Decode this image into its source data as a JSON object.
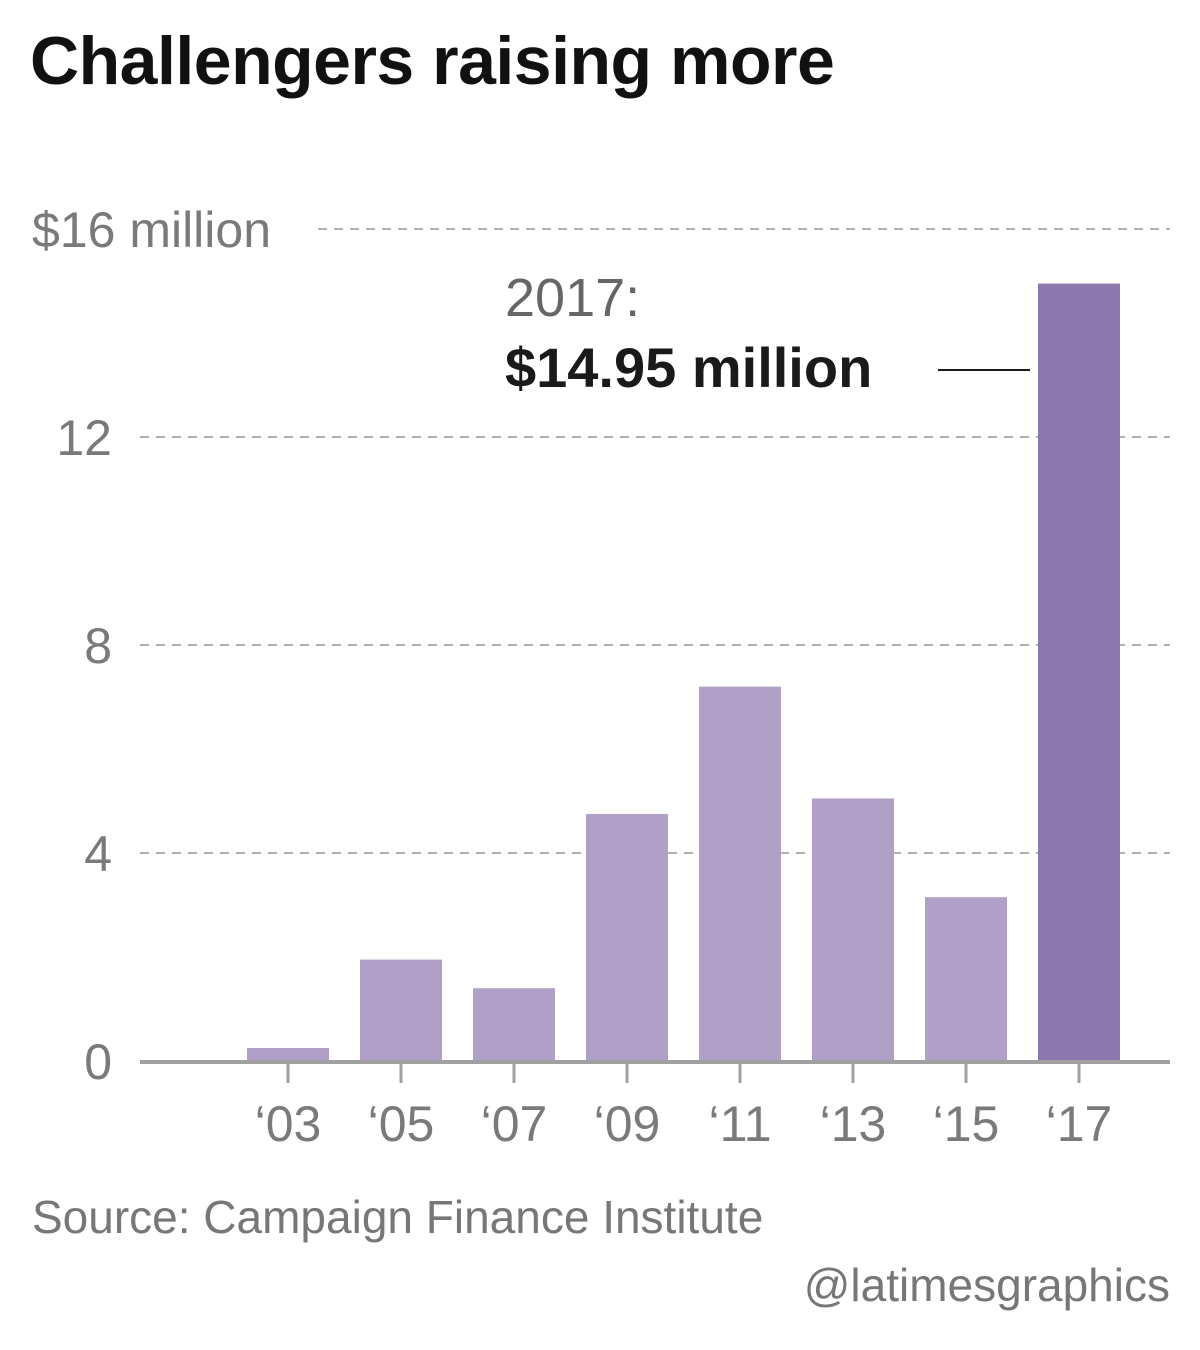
{
  "chart_data": {
    "type": "bar",
    "title": "Challengers raising more",
    "categories": [
      "'03",
      "'05",
      "'07",
      "'09",
      "'11",
      "'13",
      "'15",
      "'17"
    ],
    "tick_labels": [
      "‘03",
      "‘05",
      "‘07",
      "‘09",
      "‘11",
      "‘13",
      "‘15",
      "‘17"
    ],
    "values": [
      0.25,
      1.95,
      1.4,
      4.75,
      7.2,
      5.05,
      3.15,
      14.95
    ],
    "highlight_index": 7,
    "ylim": [
      0,
      16
    ],
    "y_ticks": [
      0,
      4,
      8,
      12,
      16
    ],
    "y_tick_labels": [
      "0",
      "4",
      "8",
      "12",
      "$16 million"
    ],
    "grid": true,
    "annotation": {
      "line1": "2017:",
      "line2": "$14.95 million"
    },
    "colors": {
      "bar": "#b09fc7",
      "highlight": "#8c78ad",
      "grid": "#b0b0b0",
      "axis": "#a0a0a0",
      "tick_text": "#7a7a7a"
    }
  },
  "source": "Source: Campaign Finance Institute",
  "credit": "@latimesgraphics"
}
